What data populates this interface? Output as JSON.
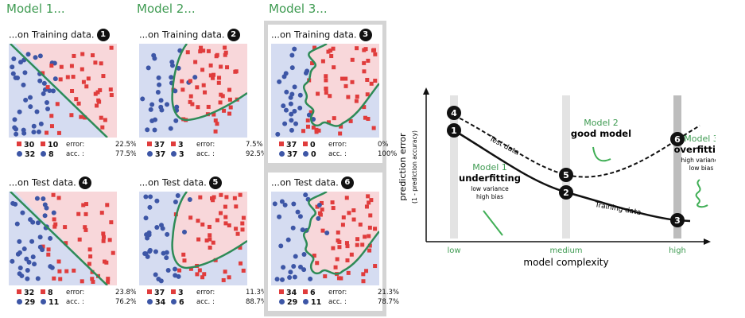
{
  "models": [
    {
      "title": "Model 1...",
      "colors": {
        "region_red": "#f8d7da",
        "region_blue": "#d5dcf1",
        "boundary": "#2e8b57"
      },
      "panels": [
        {
          "title": "...on Training data.",
          "badge": "1",
          "stats": {
            "red_correct": "30",
            "red_wrong": "10",
            "blue_correct": "32",
            "blue_wrong": "8",
            "error_label": "error:",
            "error_value": "22.5%",
            "acc_label": "acc. :",
            "acc_value": "77.5%"
          }
        },
        {
          "title": "...on Test data.",
          "badge": "4",
          "stats": {
            "red_correct": "32",
            "red_wrong": "8",
            "blue_correct": "29",
            "blue_wrong": "11",
            "error_label": "error:",
            "error_value": "23.8%",
            "acc_label": "acc. :",
            "acc_value": "76.2%"
          }
        }
      ]
    },
    {
      "title": "Model 2...",
      "panels": [
        {
          "title": "...on Training data.",
          "badge": "2",
          "stats": {
            "red_correct": "37",
            "red_wrong": "3",
            "blue_correct": "37",
            "blue_wrong": "3",
            "error_label": "error:",
            "error_value": "7.5%",
            "acc_label": "acc. :",
            "acc_value": "92.5%"
          }
        },
        {
          "title": "...on Test data.",
          "badge": "5",
          "stats": {
            "red_correct": "37",
            "red_wrong": "3",
            "blue_correct": "34",
            "blue_wrong": "6",
            "error_label": "error:",
            "error_value": "11.3%",
            "acc_label": "acc. :",
            "acc_value": "88.7%"
          }
        }
      ]
    },
    {
      "title": "Model 3...",
      "panels": [
        {
          "title": "...on Training data.",
          "badge": "3",
          "stats": {
            "red_correct": "37",
            "red_wrong": "0",
            "blue_correct": "37",
            "blue_wrong": "0",
            "error_label": "error:",
            "error_value": "0%",
            "acc_label": "acc. :",
            "acc_value": "100%"
          }
        },
        {
          "title": "...on Test data.",
          "badge": "6",
          "stats": {
            "red_correct": "34",
            "red_wrong": "6",
            "blue_correct": "29",
            "blue_wrong": "11",
            "error_label": "error:",
            "error_value": "21.3%",
            "acc_label": "acc. :",
            "acc_value": "78.7%"
          }
        }
      ]
    }
  ],
  "complexity_chart": {
    "ylabel": "prediction error",
    "ylabel_sub": "(1 - prediction accuracy)",
    "xlabel": "model complexity",
    "ticks": [
      "low",
      "medium",
      "high"
    ],
    "tick_color": "#3f9b52",
    "test_curve_label": "Test data",
    "train_curve_label": "Training data",
    "markers": [
      "1",
      "2",
      "3",
      "4",
      "5",
      "6"
    ],
    "annotations": {
      "model1": {
        "name": "Model 1",
        "verdict": "underfitting",
        "detail1": "low variance",
        "detail2": "high bias"
      },
      "model2": {
        "name": "Model 2",
        "verdict": "good model"
      },
      "model3": {
        "name": "Model 3",
        "verdict": "overfitting",
        "detail1": "high variance",
        "detail2": "low bias"
      }
    }
  }
}
